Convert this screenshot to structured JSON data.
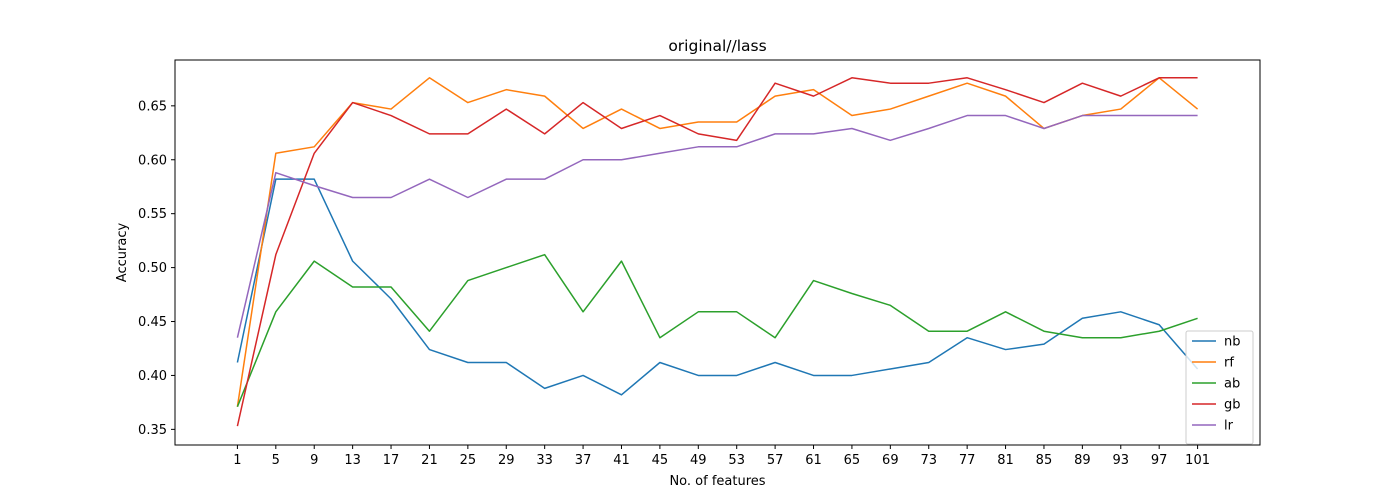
{
  "chart_data": {
    "type": "line",
    "title": "original//lass",
    "xlabel": "No. of features",
    "ylabel": "Accuracy",
    "x": [
      1,
      5,
      9,
      13,
      17,
      21,
      25,
      29,
      33,
      37,
      41,
      45,
      49,
      53,
      57,
      61,
      65,
      69,
      73,
      77,
      81,
      85,
      89,
      93,
      97,
      101
    ],
    "xlim": [
      -5.5,
      107.5
    ],
    "ylim": [
      0.3355,
      0.6925
    ],
    "yticks": [
      0.35,
      0.4,
      0.45,
      0.5,
      0.55,
      0.6,
      0.65
    ],
    "ytick_labels": [
      "0.35",
      "0.40",
      "0.45",
      "0.50",
      "0.55",
      "0.60",
      "0.65"
    ],
    "grid": false,
    "legend_position": "lower right",
    "series": [
      {
        "name": "nb",
        "color": "#1f77b4",
        "values": [
          0.412,
          0.582,
          0.582,
          0.506,
          0.471,
          0.424,
          0.412,
          0.412,
          0.388,
          0.4,
          0.382,
          0.412,
          0.4,
          0.4,
          0.412,
          0.4,
          0.4,
          0.406,
          0.412,
          0.435,
          0.424,
          0.429,
          0.453,
          0.459,
          0.447,
          0.406
        ]
      },
      {
        "name": "rf",
        "color": "#ff7f0e",
        "values": [
          0.371,
          0.606,
          0.612,
          0.653,
          0.647,
          0.676,
          0.653,
          0.665,
          0.659,
          0.629,
          0.647,
          0.629,
          0.635,
          0.635,
          0.659,
          0.665,
          0.641,
          0.647,
          0.659,
          0.671,
          0.659,
          0.629,
          0.641,
          0.647,
          0.676,
          0.647
        ]
      },
      {
        "name": "ab",
        "color": "#2ca02c",
        "values": [
          0.371,
          0.459,
          0.506,
          0.482,
          0.482,
          0.441,
          0.488,
          0.5,
          0.512,
          0.459,
          0.506,
          0.435,
          0.459,
          0.459,
          0.435,
          0.488,
          0.476,
          0.465,
          0.441,
          0.441,
          0.459,
          0.441,
          0.435,
          0.435,
          0.441,
          0.453
        ]
      },
      {
        "name": "gb",
        "color": "#d62728",
        "values": [
          0.353,
          0.512,
          0.606,
          0.653,
          0.641,
          0.624,
          0.624,
          0.647,
          0.624,
          0.653,
          0.629,
          0.641,
          0.624,
          0.618,
          0.671,
          0.659,
          0.676,
          0.671,
          0.671,
          0.676,
          0.665,
          0.653,
          0.671,
          0.659,
          0.676,
          0.676
        ]
      },
      {
        "name": "lr",
        "color": "#9467bd",
        "values": [
          0.435,
          0.588,
          0.576,
          0.565,
          0.565,
          0.582,
          0.565,
          0.582,
          0.582,
          0.6,
          0.6,
          0.606,
          0.612,
          0.612,
          0.624,
          0.624,
          0.629,
          0.618,
          0.629,
          0.641,
          0.641,
          0.629,
          0.641,
          0.641,
          0.641,
          0.641
        ]
      }
    ]
  }
}
